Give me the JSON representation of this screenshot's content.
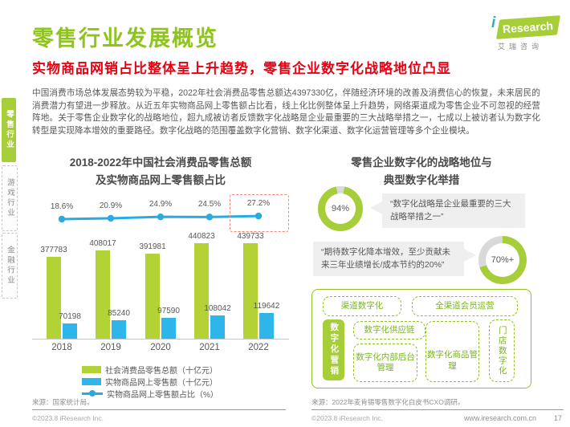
{
  "page": {
    "title": "零售行业发展概览",
    "subtitle": "实物商品网销占比整体呈上升趋势，零售企业数字化战略地位凸显",
    "body": "中国消费市场总体发展态势较为平稳，2022年社会消费品零售总额达4397330亿，伴随经济环境的改善及消费信心的恢复，未来居民的消费潜力有望进一步释放。从近五年实物商品网上零售额占比看，线上化比例整体呈上升趋势，网络渠道成为零售企业不可忽视的经营阵地。关于零售企业数字化的战略地位，超九成被访者反馈数字化战略是企业最重要的三大战略举措之一，七成以上被访者认为数字化转型是实现降本增效的重要路径。数字化战略的范围覆盖数字化营销、数字化渠道、数字化运营管理等多个企业模块。",
    "copyright": "©2023.8 iResearch Inc.",
    "website": "www.iresearch.com.cn",
    "page_number": "17"
  },
  "logo": {
    "i": "i",
    "research": "Research",
    "cn": "艾瑞咨询"
  },
  "sidebar": {
    "items": [
      {
        "label": "零售行业",
        "active": true
      },
      {
        "label": "游戏行业",
        "active": false
      },
      {
        "label": "金融行业",
        "active": false
      }
    ]
  },
  "chart_data": {
    "type": "bar+line",
    "title_line1": "2018-2022年中国社会消费品零售总额",
    "title_line2": "及实物商品网上零售额占比",
    "categories": [
      "2018",
      "2019",
      "2020",
      "2021",
      "2022"
    ],
    "series": [
      {
        "name": "社会消费品零售总额（十亿元）",
        "type": "bar",
        "color": "#b3d235",
        "values": [
          377783,
          408017,
          391981,
          440823,
          439733
        ]
      },
      {
        "name": "实物商品网上零售额（十亿元）",
        "type": "bar",
        "color": "#2eb6ea",
        "values": [
          70198,
          85240,
          97590,
          108042,
          119642
        ]
      },
      {
        "name": "实物商品网上零售额占比（%）",
        "type": "line",
        "color": "#29abe2",
        "values": [
          18.6,
          20.9,
          24.9,
          24.5,
          27.2
        ]
      }
    ],
    "highlight_last_point": true,
    "grid": false,
    "legend_position": "bottom",
    "source": "来源：国家统计局。"
  },
  "right_panel": {
    "title_line1": "零售企业数字化的战略地位与",
    "title_line2": "典型数字化举措",
    "stats": [
      {
        "value": "94%",
        "pct": 94,
        "quote": "“数字化战略是企业最重要的三大战略举措之一”"
      },
      {
        "value": "70%+",
        "pct": 70,
        "quote": "“期待数字化降本增效，至少贡献未来三年业绩增长/成本节约的20%”"
      }
    ],
    "diagram": {
      "top_row": [
        "渠道数字化",
        "全渠道会员运营"
      ],
      "left_vertical": "数字化营销",
      "middle_top": "数字化供应链",
      "middle_bottom_left": "数字化内部后台管理",
      "middle_bottom_right": "数字化商品管理",
      "right_vertical": "门店数字化"
    },
    "source": "来源：2022年麦肯锡零售数字化白皮书CXO调研。"
  }
}
